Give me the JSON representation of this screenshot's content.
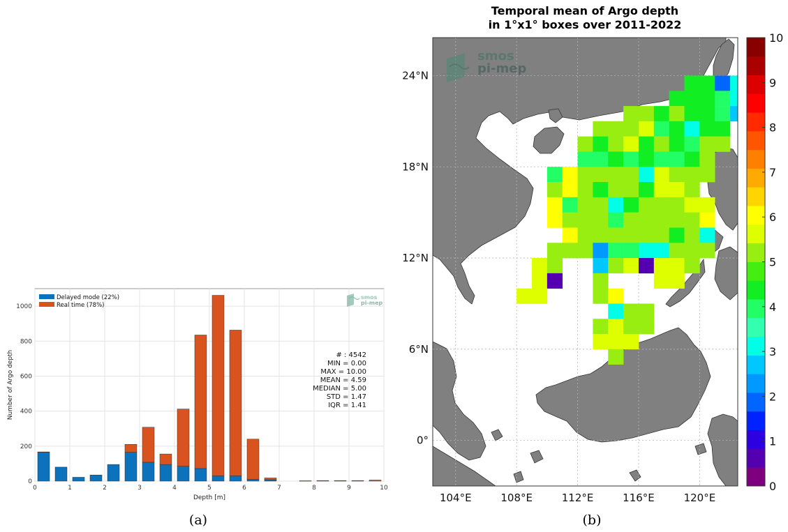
{
  "panel_a": {
    "caption": "(a)",
    "logo_text": [
      "smos",
      "pi-mep"
    ],
    "stats": [
      "# : 4542",
      "MIN = 0.00",
      "MAX = 10.00",
      "MEAN = 4.59",
      "MEDIAN = 5.00",
      "STD = 1.47",
      "IQR = 1.41"
    ]
  },
  "panel_b": {
    "caption": "(b)",
    "logo_text": [
      "smos",
      "pi-mep"
    ]
  },
  "colors": {
    "delayed": "#0b72bb",
    "realtime": "#d9531e",
    "land": "#808080",
    "nan_cell": "#ffffff"
  },
  "chart_data": [
    {
      "type": "bar",
      "stacked": true,
      "xlabel": "Depth [m]",
      "ylabel": "Number of Argo depth",
      "xlim": [
        0,
        10
      ],
      "ylim": [
        0,
        1100
      ],
      "xticks": [
        0,
        1,
        2,
        3,
        4,
        5,
        6,
        7,
        8,
        9,
        10
      ],
      "yticks": [
        0,
        200,
        400,
        600,
        800,
        1000
      ],
      "grid": true,
      "legend_position": "top-left",
      "bin_centers": [
        0.25,
        0.75,
        1.25,
        1.75,
        2.25,
        2.75,
        3.25,
        3.75,
        4.25,
        4.75,
        5.25,
        5.75,
        6.25,
        6.75,
        7.25,
        7.75,
        8.25,
        8.75,
        9.25,
        9.75
      ],
      "series": [
        {
          "name": "Delayed mode (22%)",
          "values": [
            165,
            80,
            22,
            35,
            95,
            165,
            108,
            95,
            85,
            72,
            30,
            30,
            10,
            8,
            0,
            0,
            0,
            0,
            0,
            0
          ]
        },
        {
          "name": "Real time (78%)",
          "values": [
            2,
            0,
            0,
            0,
            0,
            45,
            200,
            60,
            327,
            763,
            1032,
            833,
            230,
            10,
            0,
            2,
            3,
            3,
            3,
            6
          ]
        }
      ]
    },
    {
      "type": "heatmap",
      "title": "Temporal mean of Argo depth\nin 1°x1° boxes over 2011-2022",
      "x_ticks": [
        "104°E",
        "108°E",
        "112°E",
        "116°E",
        "120°E"
      ],
      "x_tick_values": [
        104,
        108,
        112,
        116,
        120
      ],
      "y_ticks": [
        "0°",
        "6°N",
        "12°N",
        "18°N",
        "24°N"
      ],
      "y_tick_values": [
        0,
        6,
        12,
        18,
        24
      ],
      "xlim": [
        102.5,
        122.5
      ],
      "ylim": [
        -3,
        26.5
      ],
      "colorbar": {
        "min": 0,
        "max": 10,
        "ticks": [
          0,
          1,
          2,
          3,
          4,
          5,
          6,
          7,
          8,
          9,
          10
        ]
      },
      "colormap": [
        "#7f007f",
        "#5500b0",
        "#2c00e0",
        "#0022ff",
        "#0066ff",
        "#0099ff",
        "#00c8ff",
        "#00ffe6",
        "#33ffb0",
        "#22ff66",
        "#11ee22",
        "#44ee11",
        "#99ee11",
        "#ddff00",
        "#ffff00",
        "#ffd500",
        "#ffaa00",
        "#ff7f00",
        "#ff5500",
        "#ff2a00",
        "#ff0000",
        "#dd0000",
        "#aa0000",
        "#880000"
      ],
      "cells": [
        [
          119,
          23,
          4.5
        ],
        [
          120,
          23,
          4.5
        ],
        [
          121,
          23,
          2
        ],
        [
          122,
          23,
          3
        ],
        [
          118,
          22,
          4.5
        ],
        [
          119,
          22,
          4.5
        ],
        [
          120,
          22,
          4.5
        ],
        [
          121,
          22,
          3.8
        ],
        [
          122,
          22,
          3.2
        ],
        [
          115,
          21,
          5
        ],
        [
          116,
          21,
          5
        ],
        [
          117,
          21,
          4.5
        ],
        [
          118,
          21,
          5
        ],
        [
          119,
          21,
          4.5
        ],
        [
          120,
          21,
          4.5
        ],
        [
          121,
          21,
          3.8
        ],
        [
          122,
          21,
          2.7
        ],
        [
          113,
          20,
          5
        ],
        [
          114,
          20,
          5
        ],
        [
          115,
          20,
          5
        ],
        [
          116,
          20,
          5.5
        ],
        [
          117,
          20,
          3.8
        ],
        [
          118,
          20,
          4.5
        ],
        [
          119,
          20,
          3.3
        ],
        [
          120,
          20,
          4.5
        ],
        [
          121,
          20,
          4.2
        ],
        [
          112,
          19,
          5
        ],
        [
          113,
          19,
          4.5
        ],
        [
          114,
          19,
          5
        ],
        [
          115,
          19,
          5.5
        ],
        [
          116,
          19,
          4.5
        ],
        [
          117,
          19,
          5
        ],
        [
          118,
          19,
          4.5
        ],
        [
          119,
          19,
          3.8
        ],
        [
          120,
          19,
          5
        ],
        [
          121,
          19,
          5
        ],
        [
          112,
          18,
          4
        ],
        [
          113,
          18,
          4
        ],
        [
          114,
          18,
          4.5
        ],
        [
          115,
          18,
          4
        ],
        [
          116,
          18,
          4.5
        ],
        [
          117,
          18,
          3.8
        ],
        [
          118,
          18,
          4
        ],
        [
          119,
          18,
          4.5
        ],
        [
          120,
          18,
          5
        ],
        [
          110,
          17,
          4
        ],
        [
          111,
          17,
          6
        ],
        [
          112,
          17,
          5
        ],
        [
          113,
          17,
          5
        ],
        [
          114,
          17,
          5
        ],
        [
          115,
          17,
          5
        ],
        [
          116,
          17,
          3.2
        ],
        [
          117,
          17,
          5.5
        ],
        [
          118,
          17,
          5
        ],
        [
          119,
          17,
          5
        ],
        [
          120,
          17,
          5
        ],
        [
          110,
          16,
          5
        ],
        [
          111,
          16,
          6
        ],
        [
          112,
          16,
          5
        ],
        [
          113,
          16,
          4.2
        ],
        [
          114,
          16,
          5
        ],
        [
          115,
          16,
          5
        ],
        [
          116,
          16,
          4.5
        ],
        [
          117,
          16,
          5.5
        ],
        [
          118,
          16,
          5.5
        ],
        [
          119,
          16,
          5
        ],
        [
          110,
          15,
          6
        ],
        [
          111,
          15,
          3.8
        ],
        [
          112,
          15,
          5
        ],
        [
          113,
          15,
          5
        ],
        [
          114,
          15,
          3.3
        ],
        [
          115,
          15,
          4.2
        ],
        [
          116,
          15,
          5
        ],
        [
          117,
          15,
          5
        ],
        [
          118,
          15,
          5
        ],
        [
          119,
          15,
          5.5
        ],
        [
          120,
          15,
          5.5
        ],
        [
          110,
          14,
          6
        ],
        [
          111,
          14,
          5
        ],
        [
          112,
          14,
          5
        ],
        [
          113,
          14,
          5
        ],
        [
          114,
          14,
          3.8
        ],
        [
          115,
          14,
          5
        ],
        [
          116,
          14,
          5
        ],
        [
          117,
          14,
          5
        ],
        [
          118,
          14,
          5
        ],
        [
          119,
          14,
          5
        ],
        [
          120,
          14,
          6
        ],
        [
          111,
          13,
          6
        ],
        [
          112,
          13,
          5
        ],
        [
          113,
          13,
          5
        ],
        [
          114,
          13,
          5
        ],
        [
          115,
          13,
          5
        ],
        [
          116,
          13,
          5
        ],
        [
          117,
          13,
          5
        ],
        [
          118,
          13,
          4.2
        ],
        [
          119,
          13,
          5
        ],
        [
          120,
          13,
          3.3
        ],
        [
          110,
          12,
          5
        ],
        [
          111,
          12,
          5
        ],
        [
          112,
          12,
          5
        ],
        [
          113,
          12,
          2.2
        ],
        [
          114,
          12,
          3.8
        ],
        [
          115,
          12,
          4
        ],
        [
          116,
          12,
          3.3
        ],
        [
          117,
          12,
          3.3
        ],
        [
          118,
          12,
          5
        ],
        [
          119,
          12,
          5
        ],
        [
          120,
          12,
          5
        ],
        [
          109,
          11,
          5.5
        ],
        [
          110,
          11,
          5
        ],
        [
          113,
          11,
          2.6
        ],
        [
          114,
          11,
          5
        ],
        [
          115,
          11,
          5.5
        ],
        [
          116,
          11,
          0.5
        ],
        [
          117,
          11,
          5.5
        ],
        [
          118,
          11,
          5.5
        ],
        [
          119,
          11,
          5
        ],
        [
          109,
          10,
          5.5
        ],
        [
          110,
          10,
          0.5
        ],
        [
          113,
          10,
          5
        ],
        [
          117,
          10,
          5.5
        ],
        [
          118,
          10,
          5.5
        ],
        [
          108,
          9,
          5.5
        ],
        [
          109,
          9,
          5.5
        ],
        [
          113,
          9,
          5
        ],
        [
          114,
          9,
          6
        ],
        [
          114,
          8,
          3.3
        ],
        [
          115,
          8,
          5
        ],
        [
          116,
          8,
          5
        ],
        [
          113,
          7,
          5
        ],
        [
          114,
          7,
          5.5
        ],
        [
          115,
          7,
          5
        ],
        [
          116,
          7,
          5
        ],
        [
          113,
          6,
          5.5
        ],
        [
          114,
          6,
          5.5
        ],
        [
          115,
          6,
          5.5
        ],
        [
          114,
          5,
          5
        ]
      ]
    }
  ]
}
